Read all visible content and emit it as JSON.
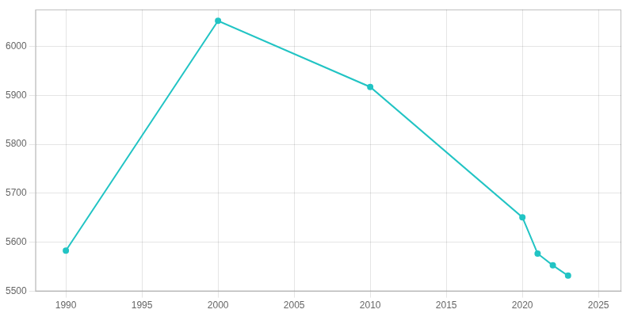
{
  "chart_data": {
    "type": "line",
    "x": [
      1990,
      2000,
      2010,
      2020,
      2021,
      2022,
      2023
    ],
    "values": [
      5583,
      6052,
      5917,
      5651,
      5577,
      5553,
      5532
    ],
    "color": "#22c4c4",
    "marker": "circle",
    "xlim": [
      1988,
      2026.5
    ],
    "ylim": [
      5500,
      6075
    ],
    "xticks": [
      1990,
      1995,
      2000,
      2005,
      2010,
      2015,
      2020,
      2025
    ],
    "yticks": [
      5500,
      5600,
      5700,
      5800,
      5900,
      6000
    ],
    "grid": true
  }
}
